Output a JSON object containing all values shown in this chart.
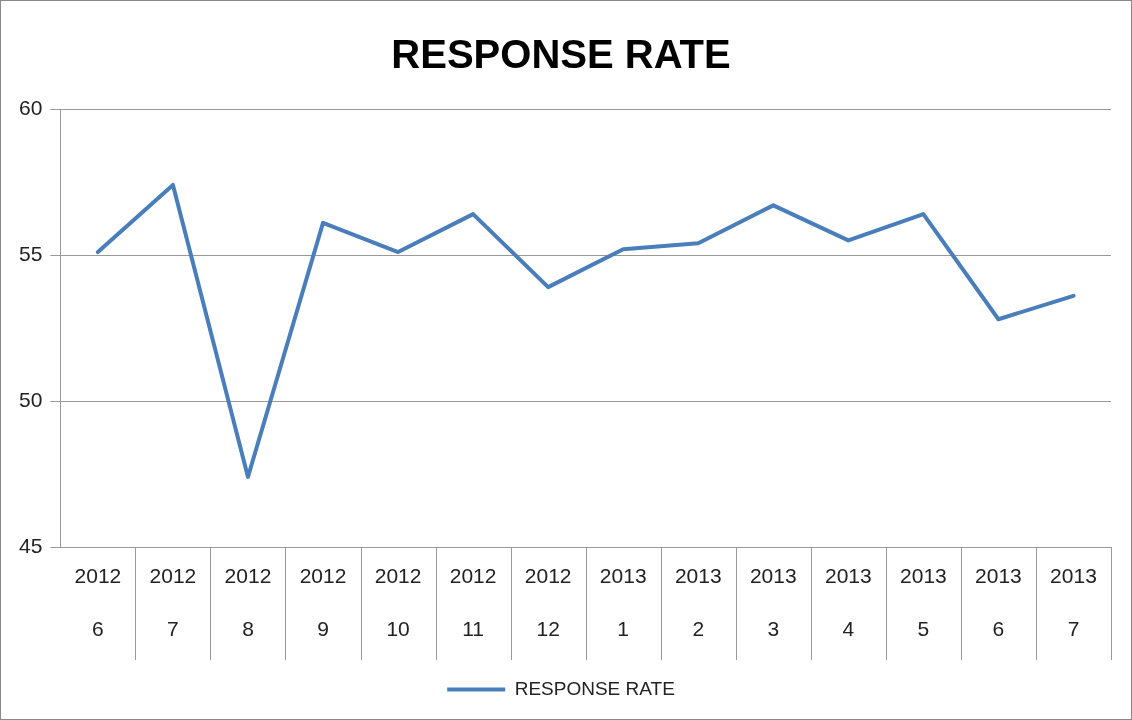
{
  "chart_data": {
    "type": "line",
    "title": "RESPONSE RATE",
    "categories": [
      "2012 6",
      "2012 7",
      "2012 8",
      "2012 9",
      "2012 10",
      "2012 11",
      "2012 12",
      "2013 1",
      "2013 2",
      "2013 3",
      "2013 4",
      "2013 5",
      "2013 6",
      "2013 7"
    ],
    "series": [
      {
        "name": "RESPONSE RATE",
        "color": "#4a7ebb",
        "values": [
          55.1,
          57.4,
          47.4,
          56.1,
          55.1,
          56.4,
          53.9,
          55.2,
          55.4,
          56.7,
          55.5,
          56.4,
          52.8,
          53.6
        ]
      }
    ],
    "ylim": [
      45,
      60
    ],
    "yticks": [
      45,
      50,
      55,
      60
    ],
    "grid": "y",
    "legend": "bottom",
    "marker": "none",
    "line_style": "solid"
  }
}
